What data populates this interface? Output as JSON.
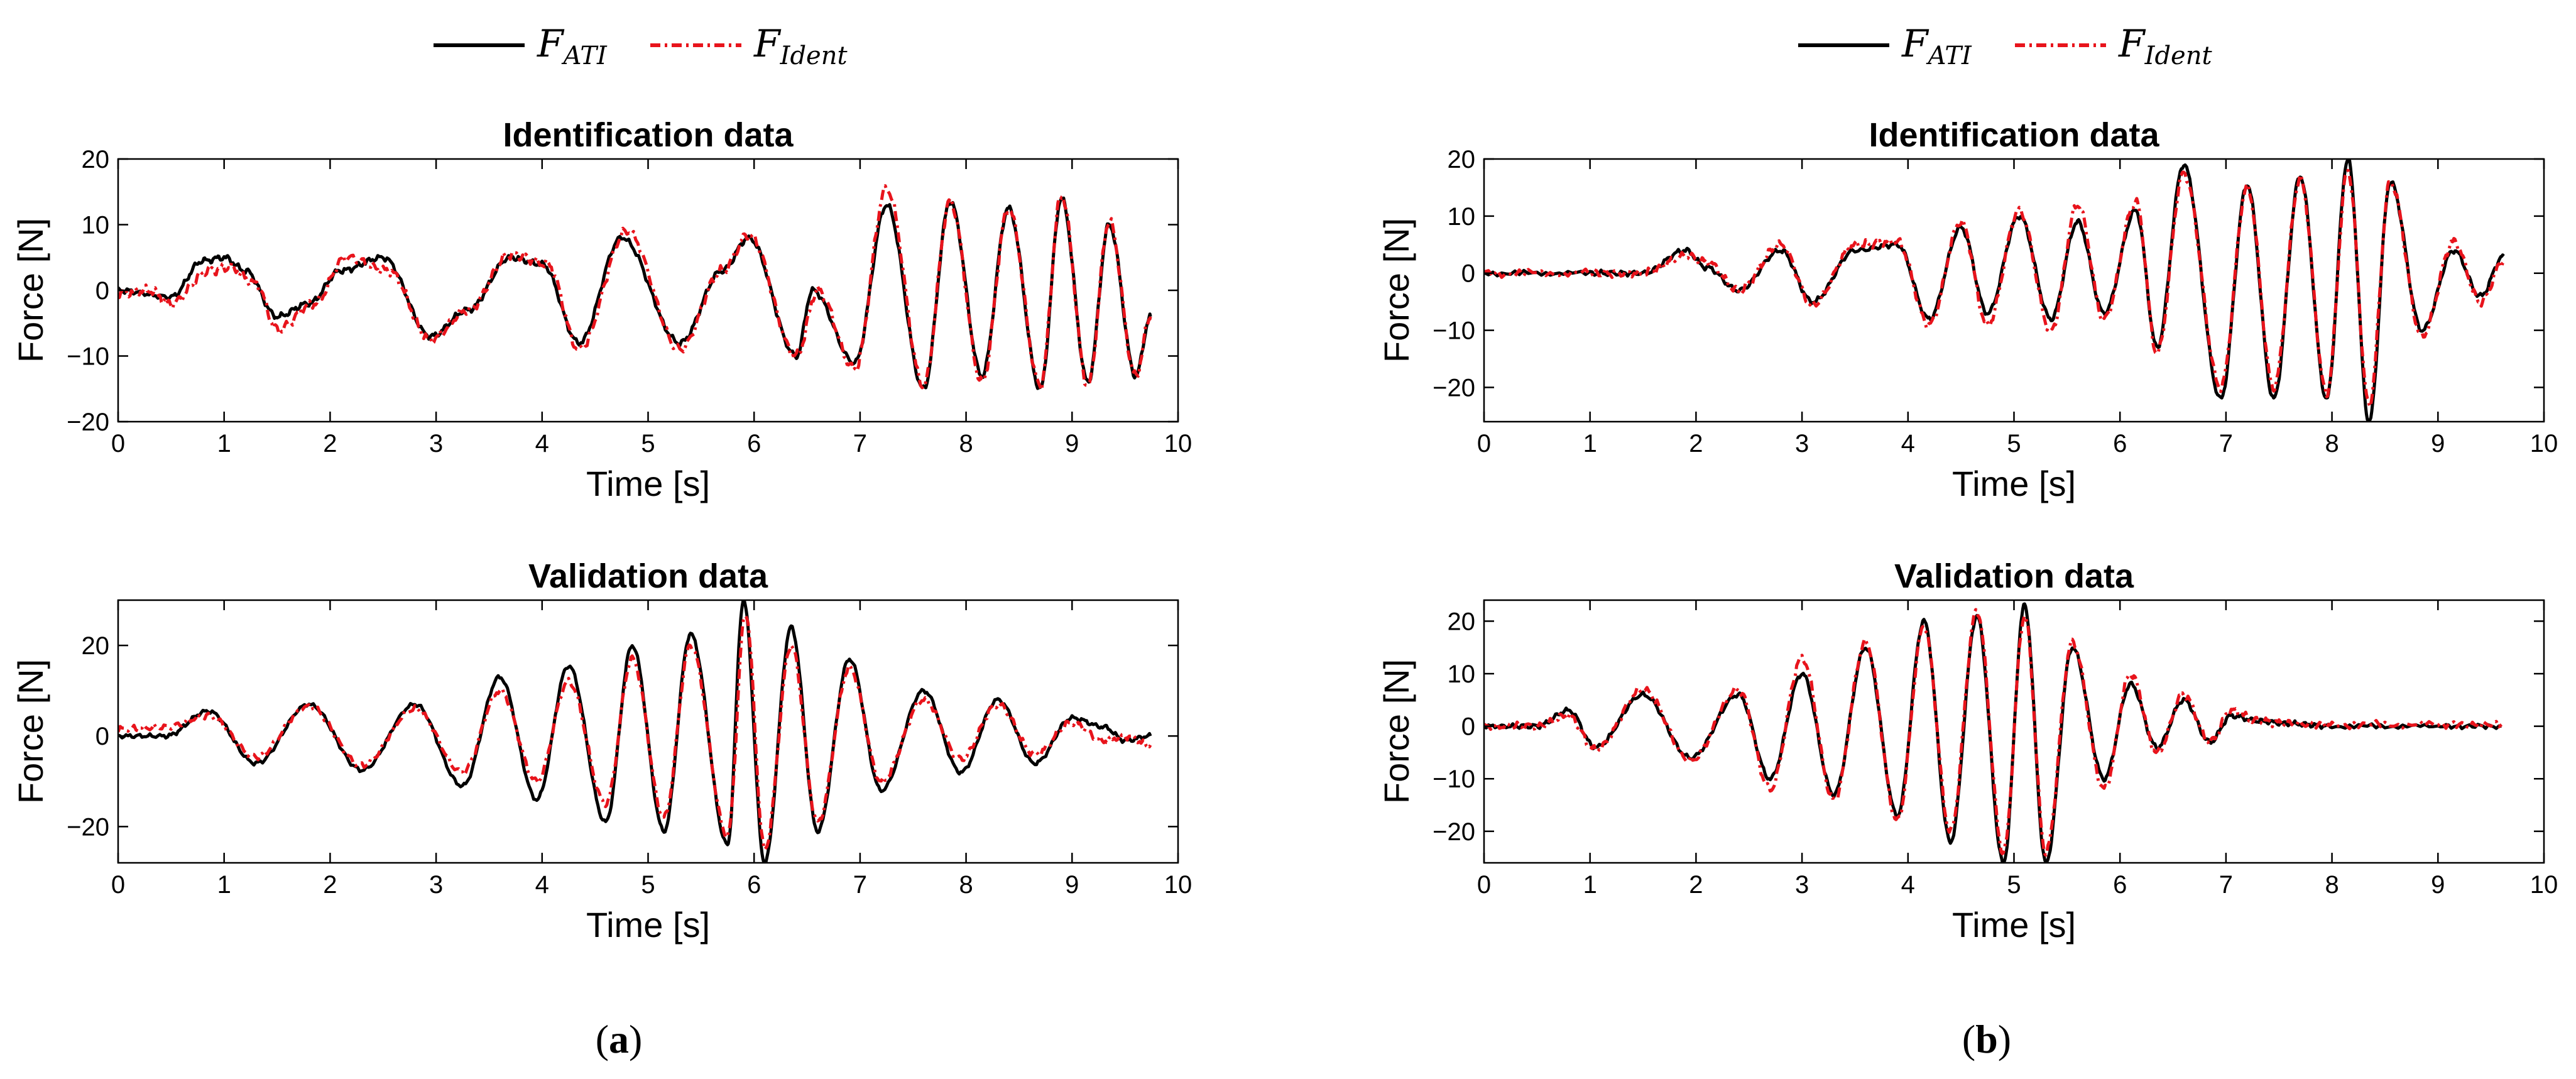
{
  "colors": {
    "ati": "#000000",
    "ident": "#e8141c"
  },
  "legend": {
    "ati": {
      "main": "F",
      "sub": "ATI"
    },
    "ident": {
      "main": "F",
      "sub": "Ident"
    }
  },
  "captions": {
    "a": "a",
    "b": "b"
  },
  "chart_data": [
    {
      "type": "line",
      "panel": "a-top",
      "title": "Identification data",
      "xlabel": "Time [s]",
      "ylabel": "Force [N]",
      "xlim": [
        0,
        10
      ],
      "ylim": [
        -20,
        20
      ],
      "xticks": [
        0,
        1,
        2,
        3,
        4,
        5,
        6,
        7,
        8,
        9,
        10
      ],
      "yticks": [
        -20,
        -10,
        0,
        10,
        20
      ],
      "legend": "top",
      "series": [
        {
          "name": "F_ATI",
          "key": "ati",
          "x": [
            0,
            0.5,
            0.8,
            1.0,
            1.2,
            1.5,
            1.8,
            2.1,
            2.5,
            2.95,
            3.3,
            3.7,
            4.0,
            4.35,
            4.75,
            5.3,
            5.7,
            5.95,
            6.4,
            6.55,
            6.95,
            7.25,
            7.6,
            7.85,
            8.15,
            8.4,
            8.7,
            8.9,
            9.15,
            9.35,
            9.6,
            9.74
          ],
          "y": [
            0,
            -1,
            4.5,
            5,
            3,
            -4,
            -2,
            3,
            5,
            -7,
            -3,
            5,
            4,
            -8,
            8,
            -8,
            3,
            8,
            -10,
            0,
            -11,
            13,
            -15,
            13.5,
            -13,
            12.5,
            -15,
            14,
            -14,
            10,
            -13,
            -4
          ]
        },
        {
          "name": "F_Ident",
          "key": "ident",
          "x": [
            0,
            0.3,
            0.5,
            0.85,
            1.05,
            1.3,
            1.5,
            1.85,
            2.15,
            2.55,
            2.95,
            3.3,
            3.7,
            4.05,
            4.35,
            4.8,
            5.3,
            5.7,
            5.95,
            6.4,
            6.6,
            6.95,
            7.25,
            7.6,
            7.85,
            8.15,
            8.4,
            8.7,
            8.9,
            9.15,
            9.35,
            9.6,
            9.74
          ],
          "y": [
            -0.5,
            0,
            -2,
            3,
            3.5,
            1,
            -6,
            -2,
            5,
            3,
            -7.5,
            -3,
            5.5,
            4,
            -9,
            9,
            -9,
            3,
            8.5,
            -10,
            0,
            -12,
            15.5,
            -14.5,
            13.5,
            -14,
            12.5,
            -14.5,
            14.5,
            -14.5,
            10.5,
            -13,
            -4
          ]
        }
      ]
    },
    {
      "type": "line",
      "panel": "a-bottom",
      "title": "Validation data",
      "xlabel": "Time [s]",
      "ylabel": "Force [N]",
      "xlim": [
        0,
        10
      ],
      "ylim": [
        -28,
        30
      ],
      "xticks": [
        0,
        1,
        2,
        3,
        4,
        5,
        6,
        7,
        8,
        9,
        10
      ],
      "yticks": [
        -20,
        0,
        20
      ],
      "series": [
        {
          "name": "F_ATI",
          "key": "ati",
          "x": [
            0,
            0.45,
            0.85,
            1.3,
            1.8,
            2.3,
            2.8,
            3.25,
            3.6,
            3.95,
            4.25,
            4.6,
            4.85,
            5.15,
            5.4,
            5.75,
            5.9,
            6.1,
            6.35,
            6.6,
            6.9,
            7.2,
            7.6,
            7.95,
            8.3,
            8.65,
            9.0,
            9.3,
            9.5,
            9.74
          ],
          "y": [
            0,
            0,
            5.5,
            -6,
            7,
            -7.5,
            7,
            -11,
            13,
            -14,
            15.5,
            -19,
            20,
            -21,
            22.5,
            -24,
            30,
            -28,
            24,
            -21,
            17,
            -12,
            10,
            -8,
            8,
            -6,
            4,
            2,
            -1,
            0
          ]
        },
        {
          "name": "F_Ident",
          "key": "ident",
          "x": [
            0,
            0.45,
            0.85,
            1.3,
            1.8,
            2.3,
            2.8,
            3.25,
            3.6,
            3.95,
            4.25,
            4.6,
            4.85,
            5.15,
            5.4,
            5.75,
            5.92,
            6.1,
            6.35,
            6.6,
            6.9,
            7.2,
            7.6,
            7.95,
            8.3,
            8.65,
            9.0,
            9.3,
            9.5,
            9.74
          ],
          "y": [
            1.5,
            2,
            4.5,
            -4.5,
            6.5,
            -6.5,
            6,
            -8,
            10,
            -10,
            12,
            -15,
            17,
            -18,
            20,
            -22,
            27,
            -25,
            20,
            -19,
            15,
            -10,
            8,
            -5,
            7,
            -4,
            3,
            -1,
            0,
            -2
          ]
        }
      ]
    },
    {
      "type": "line",
      "panel": "b-top",
      "title": "Identification data",
      "xlabel": "Time [s]",
      "ylabel": "Force [N]",
      "xlim": [
        0,
        10
      ],
      "ylim": [
        -26,
        20
      ],
      "xticks": [
        0,
        1,
        2,
        3,
        4,
        5,
        6,
        7,
        8,
        9,
        10
      ],
      "yticks": [
        -20,
        -10,
        0,
        10,
        20
      ],
      "legend": "top",
      "series": [
        {
          "name": "F_ATI",
          "key": "ati",
          "x": [
            0,
            1.0,
            1.5,
            1.9,
            2.1,
            2.4,
            2.8,
            3.1,
            3.5,
            3.9,
            4.2,
            4.5,
            4.75,
            5.05,
            5.35,
            5.6,
            5.85,
            6.15,
            6.35,
            6.6,
            6.95,
            7.2,
            7.45,
            7.7,
            7.95,
            8.15,
            8.35,
            8.55,
            8.85,
            9.15,
            9.4,
            9.62
          ],
          "y": [
            0,
            0,
            0,
            4,
            1,
            -3,
            4,
            -5,
            4,
            5,
            -8,
            8,
            -7,
            10,
            -8,
            9,
            -7,
            11,
            -13,
            19,
            -22,
            15.5,
            -22,
            17,
            -22,
            20,
            -26,
            16,
            -10,
            4,
            -4,
            3
          ]
        },
        {
          "name": "F_Ident",
          "key": "ident",
          "x": [
            0,
            1.0,
            1.5,
            1.9,
            2.1,
            2.4,
            2.8,
            3.1,
            3.5,
            3.9,
            4.2,
            4.5,
            4.75,
            5.05,
            5.35,
            5.6,
            5.85,
            6.15,
            6.35,
            6.6,
            6.95,
            7.2,
            7.45,
            7.7,
            7.95,
            8.15,
            8.35,
            8.55,
            8.85,
            9.15,
            9.4,
            9.62
          ],
          "y": [
            0,
            0,
            0,
            3,
            2,
            -3,
            5,
            -5.5,
            5,
            5.5,
            -9,
            9,
            -9,
            11,
            -10,
            12,
            -8,
            12.5,
            -14,
            17.5,
            -20,
            15,
            -20,
            16.5,
            -21,
            18,
            -23,
            16,
            -11,
            5.5,
            -5,
            2
          ]
        }
      ]
    },
    {
      "type": "line",
      "panel": "b-bottom",
      "title": "Validation data",
      "xlabel": "Time [s]",
      "ylabel": "Force [N]",
      "xlim": [
        0,
        10
      ],
      "ylim": [
        -26,
        24
      ],
      "xticks": [
        0,
        1,
        2,
        3,
        4,
        5,
        6,
        7,
        8,
        9,
        10
      ],
      "yticks": [
        -20,
        -10,
        0,
        10,
        20
      ],
      "series": [
        {
          "name": "F_ATI",
          "key": "ati",
          "x": [
            0,
            0.5,
            0.8,
            1.05,
            1.5,
            1.95,
            2.4,
            2.7,
            3.0,
            3.3,
            3.6,
            3.9,
            4.15,
            4.4,
            4.65,
            4.9,
            5.1,
            5.3,
            5.55,
            5.85,
            6.1,
            6.35,
            6.6,
            6.85,
            7.05,
            7.3,
            7.6,
            8.0,
            9.0,
            9.6
          ],
          "y": [
            0,
            0,
            3,
            -4,
            6,
            -6,
            6,
            -10,
            10,
            -13,
            15,
            -17,
            20,
            -22,
            21,
            -26,
            23,
            -26,
            15,
            -10,
            8,
            -4,
            5,
            -3,
            2,
            1,
            0.5,
            0,
            0,
            0
          ]
        },
        {
          "name": "F_Ident",
          "key": "ident",
          "x": [
            0,
            0.5,
            0.8,
            1.05,
            1.5,
            1.95,
            2.4,
            2.7,
            3.0,
            3.3,
            3.6,
            3.9,
            4.15,
            4.4,
            4.65,
            4.9,
            5.1,
            5.3,
            5.55,
            5.85,
            6.1,
            6.35,
            6.6,
            6.85,
            7.05,
            7.3,
            7.6,
            8.0,
            9.0,
            9.6
          ],
          "y": [
            0,
            0,
            2,
            -4.5,
            7,
            -6.5,
            7,
            -12,
            13,
            -14,
            16,
            -18,
            19,
            -20,
            22,
            -24,
            21,
            -24,
            16,
            -12,
            10,
            -5,
            6,
            -3,
            3,
            1,
            0.5,
            0.3,
            0.3,
            0.3
          ]
        }
      ]
    }
  ]
}
